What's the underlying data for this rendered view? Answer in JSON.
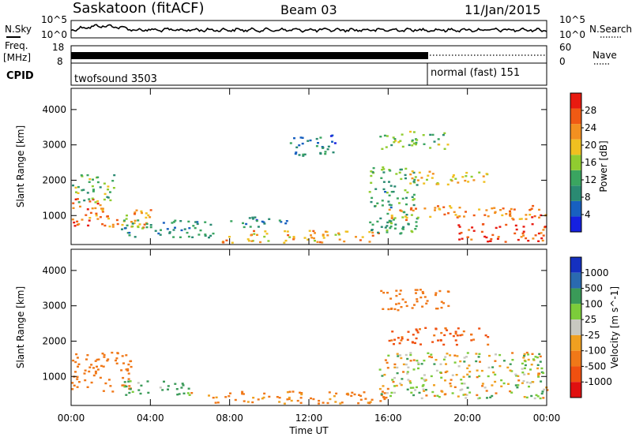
{
  "header": {
    "title": "Saskatoon (fitACF)",
    "beam": "Beam 03",
    "date": "11/Jan/2015"
  },
  "noise_panel": {
    "left_label": "N.Sky",
    "right_label": "N.Search",
    "left_ticks": [
      "10^5",
      "10^0"
    ],
    "right_ticks": [
      "10^5",
      "10^0"
    ]
  },
  "freq_panel": {
    "label_line1": "Freq.",
    "label_line2": "[MHz]",
    "ticks": [
      "18",
      "8"
    ],
    "right_label": "Nave",
    "right_ticks": [
      "60",
      "0"
    ]
  },
  "cpid_panel": {
    "label": "CPID",
    "modes": [
      {
        "name": "twofsound 3503",
        "start": 0,
        "end": 18
      },
      {
        "name": "normal (fast) 151",
        "start": 18,
        "end": 24
      }
    ]
  },
  "colors": {
    "power_scale": [
      "#1520e0",
      "#1860c0",
      "#2a8a72",
      "#3aa560",
      "#90cc30",
      "#f0c020",
      "#f39020",
      "#f05a14",
      "#e81a10"
    ],
    "velocity_scale": [
      "#1530c0",
      "#2a6ab0",
      "#3a9a58",
      "#7ccc3a",
      "#c8c8c0",
      "#f0a020",
      "#f07818",
      "#f05010",
      "#e01010"
    ],
    "scatter_gray": "#c8c8c0"
  },
  "chart_data": [
    {
      "type": "heatmap",
      "title": "",
      "xlabel": "Time UT",
      "ylabel": "Slant Range [km]",
      "xlim": [
        0,
        24
      ],
      "ylim": [
        180,
        4600
      ],
      "x_ticks": [
        "00:00",
        "04:00",
        "08:00",
        "12:00",
        "16:00",
        "20:00",
        "00:00"
      ],
      "y_ticks": [
        "1000",
        "2000",
        "3000",
        "4000"
      ],
      "colorbar": {
        "label": "Power [dB]",
        "range": [
          0,
          32
        ],
        "ticks": [
          "4",
          "8",
          "12",
          "16",
          "20",
          "24",
          "28"
        ]
      },
      "regions": [
        {
          "t0": 0.0,
          "t1": 1.8,
          "r0": 700,
          "r1": 1500,
          "level": 26
        },
        {
          "t0": 0.0,
          "t1": 2.2,
          "r0": 1400,
          "r1": 2200,
          "level": 14
        },
        {
          "t0": 1.5,
          "t1": 4.0,
          "r0": 600,
          "r1": 1200,
          "level": 22
        },
        {
          "t0": 2.5,
          "t1": 7.5,
          "r0": 400,
          "r1": 900,
          "level": 10
        },
        {
          "t0": 7.5,
          "t1": 15.5,
          "r0": 250,
          "r1": 600,
          "level": 22
        },
        {
          "t0": 8.0,
          "t1": 11.0,
          "r0": 700,
          "r1": 1000,
          "level": 8
        },
        {
          "t0": 15.0,
          "t1": 17.5,
          "r0": 500,
          "r1": 2400,
          "level": 12
        },
        {
          "t0": 16.0,
          "t1": 24.0,
          "r0": 900,
          "r1": 1300,
          "level": 24
        },
        {
          "t0": 19.5,
          "t1": 24.0,
          "r0": 280,
          "r1": 800,
          "level": 28
        },
        {
          "t0": 17.0,
          "t1": 21.0,
          "r0": 1900,
          "r1": 2300,
          "level": 20
        },
        {
          "t0": 15.5,
          "t1": 19.0,
          "r0": 2900,
          "r1": 3400,
          "level": 14
        },
        {
          "t0": 11.0,
          "t1": 13.5,
          "r0": 2700,
          "r1": 3300,
          "level": 8
        }
      ]
    },
    {
      "type": "heatmap",
      "title": "",
      "xlabel": "Time UT",
      "ylabel": "Slant Range [km]",
      "xlim": [
        0,
        24
      ],
      "ylim": [
        180,
        4600
      ],
      "x_ticks": [
        "00:00",
        "04:00",
        "08:00",
        "12:00",
        "16:00",
        "20:00",
        "00:00"
      ],
      "y_ticks": [
        "1000",
        "2000",
        "3000",
        "4000"
      ],
      "colorbar": {
        "label": "Velocity [m s^-1]",
        "ticks": [
          "1000",
          "500",
          "100",
          "25",
          "-25",
          "-100",
          "-500",
          "-1000"
        ]
      },
      "regions": [
        {
          "t0": 0.0,
          "t1": 3.0,
          "r0": 600,
          "r1": 1700,
          "velocity": -300
        },
        {
          "t0": 2.5,
          "t1": 6.0,
          "r0": 500,
          "r1": 900,
          "velocity": 150
        },
        {
          "t0": 6.0,
          "t1": 16.0,
          "r0": 250,
          "r1": 600,
          "velocity": -200
        },
        {
          "t0": 15.5,
          "t1": 24.0,
          "r0": 400,
          "r1": 1700,
          "velocity": 0
        },
        {
          "t0": 16.0,
          "t1": 21.0,
          "r0": 1900,
          "r1": 2400,
          "velocity": -600
        },
        {
          "t0": 15.5,
          "t1": 19.0,
          "r0": 2900,
          "r1": 3500,
          "velocity": -300
        }
      ]
    }
  ]
}
